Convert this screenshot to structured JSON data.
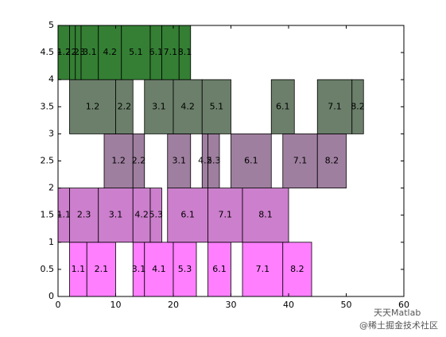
{
  "chart_data": {
    "type": "blocks",
    "xlim": [
      0,
      60
    ],
    "ylim": [
      0,
      5
    ],
    "xticks": [
      0,
      10,
      20,
      30,
      40,
      50,
      60
    ],
    "yticks": [
      0,
      0.5,
      1,
      1.5,
      2,
      2.5,
      3,
      3.5,
      4,
      4.5,
      5
    ],
    "rows": [
      {
        "y": 0,
        "color": "#ff7fff",
        "boxes": [
          {
            "start": 2,
            "end": 5,
            "label": "1.1"
          },
          {
            "start": 5,
            "end": 10,
            "label": "2.1"
          },
          {
            "start": 13,
            "end": 15,
            "label": "3.1"
          },
          {
            "start": 15,
            "end": 20,
            "label": "4.1"
          },
          {
            "start": 20,
            "end": 24,
            "label": "5.3"
          },
          {
            "start": 26,
            "end": 30,
            "label": "6.1"
          },
          {
            "start": 32,
            "end": 39,
            "label": "7.1"
          },
          {
            "start": 39,
            "end": 44,
            "label": "8.2"
          }
        ]
      },
      {
        "y": 1,
        "color": "#cc7fcc",
        "boxes": [
          {
            "start": 0,
            "end": 2,
            "label": "1.1"
          },
          {
            "start": 2,
            "end": 7,
            "label": "2.3"
          },
          {
            "start": 7,
            "end": 13,
            "label": "3.1"
          },
          {
            "start": 13,
            "end": 16,
            "label": "4.2"
          },
          {
            "start": 16,
            "end": 18,
            "label": "5.3"
          },
          {
            "start": 19,
            "end": 26,
            "label": "6.1"
          },
          {
            "start": 26,
            "end": 32,
            "label": "7.1"
          },
          {
            "start": 32,
            "end": 40,
            "label": "8.1"
          }
        ]
      },
      {
        "y": 2,
        "color": "#9f7f9f",
        "boxes": [
          {
            "start": 8,
            "end": 13,
            "label": "1.2"
          },
          {
            "start": 13,
            "end": 15,
            "label": "2.2"
          },
          {
            "start": 19,
            "end": 23,
            "label": "3.1"
          },
          {
            "start": 25,
            "end": 26,
            "label": "4.2"
          },
          {
            "start": 26,
            "end": 28,
            "label": "5.3"
          },
          {
            "start": 30,
            "end": 37,
            "label": "6.1"
          },
          {
            "start": 39,
            "end": 45,
            "label": "7.1"
          },
          {
            "start": 45,
            "end": 50,
            "label": "8.2"
          }
        ]
      },
      {
        "y": 3,
        "color": "#6b7f6b",
        "boxes": [
          {
            "start": 2,
            "end": 10,
            "label": "1.2"
          },
          {
            "start": 10,
            "end": 13,
            "label": "2.2"
          },
          {
            "start": 15,
            "end": 20,
            "label": "3.1"
          },
          {
            "start": 20,
            "end": 25,
            "label": "4.2"
          },
          {
            "start": 25,
            "end": 30,
            "label": "5.1"
          },
          {
            "start": 37,
            "end": 41,
            "label": "6.1"
          },
          {
            "start": 45,
            "end": 51,
            "label": "7.1"
          },
          {
            "start": 51,
            "end": 53,
            "label": "8.2"
          }
        ]
      },
      {
        "y": 4,
        "color": "#347f34",
        "boxes": [
          {
            "start": 0,
            "end": 2,
            "label": "1.2"
          },
          {
            "start": 2,
            "end": 3,
            "label": "2.2"
          },
          {
            "start": 3,
            "end": 4,
            "label": "2.3"
          },
          {
            "start": 4,
            "end": 7,
            "label": "3.1"
          },
          {
            "start": 7,
            "end": 11,
            "label": "4.2"
          },
          {
            "start": 11,
            "end": 16,
            "label": "5.1"
          },
          {
            "start": 16,
            "end": 18,
            "label": "6.1"
          },
          {
            "start": 18,
            "end": 21,
            "label": "7.1"
          },
          {
            "start": 21,
            "end": 23,
            "label": "8.1"
          }
        ]
      }
    ]
  },
  "watermark": {
    "brand": "天天Matlab",
    "source": "@稀土掘金技术社区"
  }
}
